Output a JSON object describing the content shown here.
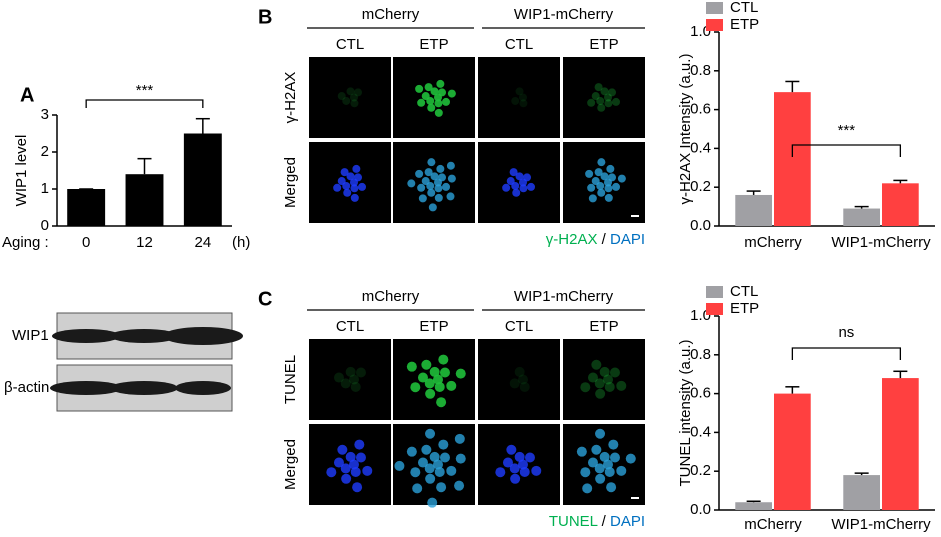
{
  "chart_data": [
    {
      "type": "bar",
      "panel": "A",
      "y_label": "WIP1 level",
      "x_label": "Aging :",
      "x_unit": "(h)",
      "categories": [
        "0",
        "12",
        "24"
      ],
      "values": [
        1,
        1.4,
        2.5
      ],
      "errors": [
        0,
        0.42,
        0.4
      ],
      "color": "#000000",
      "ylim": [
        0,
        3
      ],
      "yticks": [
        0,
        1,
        2,
        3
      ],
      "grid": false,
      "annotations": [
        "***"
      ]
    },
    {
      "type": "bar",
      "y_label": "γ-H2AX Intensity (a.u.)",
      "categories": [
        "mCherry",
        "WIP1-mCherry"
      ],
      "series": [
        {
          "name": "CTL",
          "color": "#a0a0a4",
          "values": [
            0.16,
            0.09
          ],
          "errors": [
            0.02,
            0.01
          ]
        },
        {
          "name": "ETP",
          "color": "#ff4040",
          "values": [
            0.69,
            0.22
          ],
          "errors": [
            0.055,
            0.015
          ]
        }
      ],
      "ylim": [
        0,
        1
      ],
      "yticks": [
        {
          "value": 0,
          "label": "0.0"
        },
        0.2,
        0.4,
        0.6,
        0.8,
        {
          "value": 1,
          "label": "1.0"
        }
      ],
      "grid": false,
      "legend": "top-left",
      "annotations": [
        "***"
      ]
    },
    {
      "type": "bar",
      "y_label": "TUNEL intensity (a.u.)",
      "categories": [
        "mCherry",
        "WIP1-mCherry"
      ],
      "series": [
        {
          "name": "CTL",
          "color": "#a0a0a4",
          "values": [
            0.04,
            0.18
          ],
          "errors": [
            0.005,
            0.01
          ]
        },
        {
          "name": "ETP",
          "color": "#ff4040",
          "values": [
            0.6,
            0.68
          ],
          "errors": [
            0.035,
            0.035
          ]
        }
      ],
      "ylim": [
        0,
        1
      ],
      "yticks": [
        {
          "value": 0,
          "label": "0.0"
        },
        0.2,
        0.4,
        0.6,
        0.8,
        {
          "value": 1,
          "label": "1.0"
        }
      ],
      "grid": false,
      "legend": "top-left",
      "annotations": [
        "ns"
      ]
    }
  ],
  "figure": {
    "blot": {
      "labels": [
        "WIP1",
        "β-actin"
      ]
    },
    "panels": [
      {
        "letter": "B",
        "groups": [
          "mCherry",
          "WIP1-mCherry"
        ],
        "conditions": [
          "CTL",
          "ETP",
          "CTL",
          "ETP"
        ],
        "rows": [
          "γ-H2AX",
          "Merged"
        ],
        "caption": [
          "γ-H2AX",
          " / ",
          "DAPI"
        ]
      },
      {
        "letter": "C",
        "groups": [
          "mCherry",
          "WIP1-mCherry"
        ],
        "conditions": [
          "CTL",
          "ETP",
          "CTL",
          "ETP"
        ],
        "rows": [
          "TUNEL",
          "Merged"
        ],
        "caption": [
          "TUNEL",
          " / ",
          "DAPI"
        ]
      }
    ]
  }
}
